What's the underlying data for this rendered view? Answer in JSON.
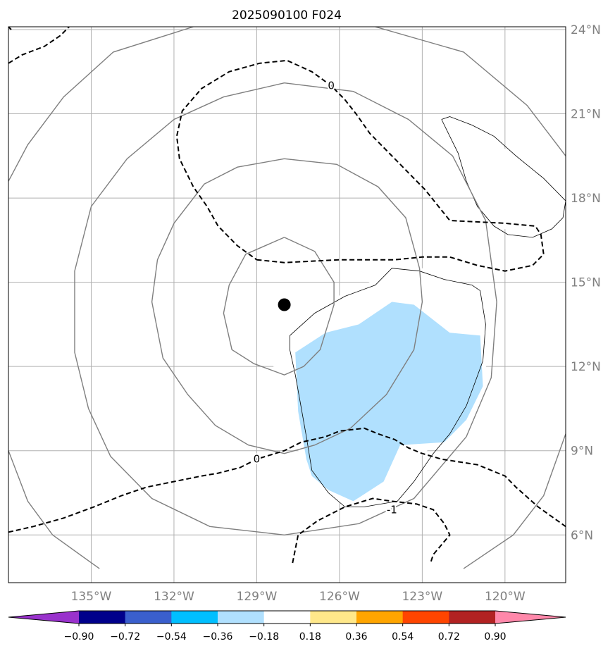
{
  "chart_data": {
    "type": "contour-map",
    "title": "2025090100 F024",
    "lon_range": [
      -138.0,
      -117.8
    ],
    "lat_range": [
      4.3,
      24.1
    ],
    "lon_ticks": [
      "135°W",
      "132°W",
      "129°W",
      "126°W",
      "123°W",
      "120°W"
    ],
    "lon_tick_values": [
      -135,
      -132,
      -129,
      -126,
      -123,
      -120
    ],
    "lat_ticks": [
      "24°N",
      "21°N",
      "18°N",
      "15°N",
      "12°N",
      "9°N",
      "6°N"
    ],
    "lat_tick_values": [
      24,
      21,
      18,
      15,
      12,
      9,
      6
    ],
    "grid": true,
    "storm_center": {
      "lon": -128.0,
      "lat": 14.2
    },
    "filled_levels": [
      -0.9,
      -0.72,
      -0.54,
      -0.36,
      -0.18,
      0.18,
      0.36,
      0.54,
      0.72,
      0.9
    ],
    "colorbar": {
      "labels": [
        "−0.90",
        "−0.72",
        "−0.54",
        "−0.36",
        "−0.18",
        "0.18",
        "0.36",
        "0.54",
        "0.72",
        "0.90"
      ],
      "colors": [
        "#9932cc",
        "#00008b",
        "#3a5fcd",
        "#00bfff",
        "#b0e0fe",
        "#ffffff",
        "#ffe88a",
        "#ffa500",
        "#ff4500",
        "#b22222",
        "#ff88aa"
      ],
      "extend": "both"
    },
    "dashed_contour_labels": [
      {
        "text": "0",
        "lon": -126.3,
        "lat": 22.0
      },
      {
        "text": "0",
        "lon": -129.0,
        "lat": 8.7
      },
      {
        "text": "-1",
        "lon": -124.1,
        "lat": 6.9
      }
    ],
    "fill_regions": [
      {
        "level": "-0.36",
        "points": [
          [
            -127.6,
            12.5
          ],
          [
            -127.5,
            10.4
          ],
          [
            -127.2,
            8.7
          ],
          [
            -127.0,
            8.1
          ],
          [
            -126.4,
            7.6
          ],
          [
            -125.5,
            7.2
          ],
          [
            -124.4,
            7.9
          ],
          [
            -123.8,
            9.2
          ],
          [
            -122.2,
            9.3
          ],
          [
            -121.4,
            10.1
          ],
          [
            -120.8,
            11.3
          ],
          [
            -120.9,
            13.1
          ],
          [
            -122.0,
            13.2
          ],
          [
            -123.3,
            14.2
          ],
          [
            -124.1,
            14.3
          ],
          [
            -125.3,
            13.5
          ],
          [
            -126.5,
            13.2
          ]
        ]
      },
      {
        "level": "-0.18",
        "points": [
          [
            -128.4,
            13.7
          ],
          [
            -127.8,
            14.0
          ],
          [
            -126.9,
            14.3
          ],
          [
            -126.1,
            14.5
          ],
          [
            -125.4,
            14.7
          ],
          [
            -124.3,
            15.4
          ],
          [
            -123.6,
            15.8
          ],
          [
            -123.0,
            15.5
          ],
          [
            -122.0,
            15.1
          ],
          [
            -121.2,
            14.8
          ],
          [
            -120.4,
            14.3
          ],
          [
            -120.5,
            12.3
          ],
          [
            -121.0,
            11.5
          ],
          [
            -121.1,
            10.5
          ],
          [
            -121.6,
            9.6
          ],
          [
            -122.6,
            9.2
          ],
          [
            -123.8,
            8.1
          ],
          [
            -124.5,
            6.9
          ],
          [
            -125.1,
            6.8
          ],
          [
            -125.9,
            7.1
          ],
          [
            -126.7,
            7.5
          ],
          [
            -127.2,
            7.6
          ],
          [
            -127.4,
            8.2
          ],
          [
            -127.6,
            10.0
          ],
          [
            -127.6,
            11.5
          ],
          [
            -128.1,
            11.9
          ],
          [
            -128.4,
            12.0
          ]
        ]
      },
      {
        "level": "-0.18",
        "points": [
          [
            -122.0,
            20.7
          ],
          [
            -121.1,
            20.3
          ],
          [
            -120.5,
            20.1
          ],
          [
            -119.5,
            19.4
          ],
          [
            -118.5,
            18.7
          ],
          [
            -117.8,
            18.2
          ],
          [
            -117.8,
            17.6
          ],
          [
            -118.3,
            17.1
          ],
          [
            -119.0,
            16.8
          ],
          [
            -120.1,
            16.9
          ],
          [
            -120.9,
            17.6
          ],
          [
            -121.5,
            18.8
          ],
          [
            -122.0,
            19.6
          ],
          [
            -122.3,
            20.1
          ],
          [
            -122.3,
            20.8
          ],
          [
            -122.1,
            20.9
          ]
        ]
      },
      {
        "level": "-0.18",
        "points": [
          [
            -138.0,
            5.2
          ],
          [
            -137.7,
            5.0
          ],
          [
            -138.0,
            4.9
          ]
        ]
      }
    ],
    "solid_contours": [
      [
        [
          -128.0,
          16.6
        ],
        [
          -126.9,
          16.1
        ],
        [
          -126.2,
          15.0
        ],
        [
          -126.2,
          14.2
        ],
        [
          -126.7,
          12.6
        ],
        [
          -127.3,
          12.0
        ],
        [
          -128.0,
          11.7
        ],
        [
          -129.1,
          12.1
        ],
        [
          -129.9,
          12.6
        ],
        [
          -130.2,
          13.9
        ],
        [
          -130.0,
          14.9
        ],
        [
          -129.4,
          16.0
        ],
        [
          -128.0,
          16.6
        ]
      ],
      [
        [
          -128.0,
          19.4
        ],
        [
          -126.1,
          19.2
        ],
        [
          -124.6,
          18.4
        ],
        [
          -123.6,
          17.3
        ],
        [
          -123.1,
          15.5
        ],
        [
          -123.0,
          14.3
        ],
        [
          -123.3,
          12.6
        ],
        [
          -124.3,
          11.0
        ],
        [
          -125.6,
          9.8
        ],
        [
          -126.9,
          9.2
        ],
        [
          -128.0,
          8.9
        ],
        [
          -129.3,
          9.2
        ],
        [
          -130.5,
          9.9
        ],
        [
          -131.5,
          11.0
        ],
        [
          -132.4,
          12.3
        ],
        [
          -132.8,
          14.3
        ],
        [
          -132.6,
          15.8
        ],
        [
          -132.0,
          17.1
        ],
        [
          -130.9,
          18.5
        ],
        [
          -129.7,
          19.1
        ],
        [
          -128.0,
          19.4
        ]
      ],
      [
        [
          -128.0,
          22.1
        ],
        [
          -125.5,
          21.8
        ],
        [
          -123.5,
          20.8
        ],
        [
          -121.9,
          19.5
        ],
        [
          -120.7,
          17.2
        ],
        [
          -120.3,
          14.3
        ],
        [
          -120.5,
          11.6
        ],
        [
          -121.4,
          9.5
        ],
        [
          -123.3,
          7.3
        ],
        [
          -125.3,
          6.4
        ],
        [
          -128.0,
          6.0
        ],
        [
          -130.7,
          6.3
        ],
        [
          -132.8,
          7.3
        ],
        [
          -134.3,
          8.8
        ],
        [
          -135.1,
          10.5
        ],
        [
          -135.6,
          12.5
        ],
        [
          -135.6,
          15.4
        ],
        [
          -135.0,
          17.7
        ],
        [
          -133.7,
          19.4
        ],
        [
          -132.0,
          20.8
        ],
        [
          -130.2,
          21.6
        ],
        [
          -128.0,
          22.1
        ]
      ],
      [
        [
          -131.3,
          24.1
        ],
        [
          -134.2,
          23.2
        ],
        [
          -136.0,
          21.6
        ],
        [
          -137.3,
          19.9
        ],
        [
          -138.0,
          18.6
        ]
      ],
      [
        [
          -124.7,
          24.1
        ],
        [
          -121.5,
          23.2
        ],
        [
          -119.2,
          21.3
        ],
        [
          -117.8,
          19.5
        ]
      ],
      [
        [
          -138.0,
          9.0
        ],
        [
          -137.3,
          7.2
        ],
        [
          -136.4,
          6.0
        ],
        [
          -134.7,
          4.8
        ]
      ],
      [
        [
          -117.8,
          9.6
        ],
        [
          -118.6,
          7.4
        ],
        [
          -119.7,
          6.0
        ],
        [
          -121.5,
          4.8
        ]
      ]
    ],
    "thin_contours": [
      [
        [
          -127.8,
          13.1
        ],
        [
          -126.9,
          13.9
        ],
        [
          -125.8,
          14.5
        ],
        [
          -124.7,
          14.9
        ],
        [
          -124.1,
          15.5
        ],
        [
          -123.1,
          15.4
        ],
        [
          -122.2,
          15.1
        ],
        [
          -121.2,
          14.9
        ],
        [
          -120.9,
          14.7
        ],
        [
          -120.7,
          13.5
        ],
        [
          -120.8,
          12.2
        ],
        [
          -121.1,
          11.4
        ],
        [
          -121.4,
          10.6
        ],
        [
          -122.0,
          9.6
        ],
        [
          -122.6,
          8.9
        ],
        [
          -123.3,
          7.9
        ],
        [
          -123.9,
          7.2
        ],
        [
          -124.5,
          7.1
        ],
        [
          -125.1,
          7.0
        ],
        [
          -125.8,
          7.0
        ],
        [
          -126.4,
          7.5
        ],
        [
          -127.0,
          8.3
        ],
        [
          -127.2,
          9.5
        ],
        [
          -127.4,
          10.6
        ],
        [
          -127.6,
          11.7
        ],
        [
          -127.8,
          12.6
        ],
        [
          -127.8,
          13.1
        ]
      ],
      [
        [
          -122.3,
          20.8
        ],
        [
          -122.0,
          20.9
        ],
        [
          -121.2,
          20.6
        ],
        [
          -120.4,
          20.2
        ],
        [
          -119.6,
          19.5
        ],
        [
          -118.6,
          18.7
        ],
        [
          -117.8,
          17.9
        ],
        [
          -117.9,
          17.3
        ],
        [
          -118.3,
          16.9
        ],
        [
          -119.0,
          16.6
        ],
        [
          -119.9,
          16.7
        ],
        [
          -120.4,
          17.0
        ],
        [
          -121.0,
          17.7
        ],
        [
          -121.4,
          18.6
        ],
        [
          -121.7,
          19.6
        ],
        [
          -122.0,
          20.2
        ],
        [
          -122.3,
          20.8
        ]
      ]
    ],
    "dashed_contours": [
      [
        [
          -129.0,
          15.8
        ],
        [
          -128.0,
          15.7
        ],
        [
          -126.0,
          15.8
        ],
        [
          -124.0,
          15.8
        ],
        [
          -123.0,
          15.9
        ],
        [
          -122.0,
          15.9
        ],
        [
          -121.0,
          15.6
        ],
        [
          -120.0,
          15.4
        ],
        [
          -119.0,
          15.6
        ],
        [
          -118.6,
          16.0
        ],
        [
          -118.7,
          16.7
        ],
        [
          -118.9,
          17.0
        ],
        [
          -120.0,
          17.1
        ],
        [
          -122.0,
          17.2
        ],
        [
          -122.9,
          18.3
        ],
        [
          -123.4,
          18.8
        ],
        [
          -124.4,
          19.8
        ],
        [
          -124.9,
          20.3
        ],
        [
          -125.4,
          21.0
        ],
        [
          -125.8,
          21.5
        ],
        [
          -126.3,
          22.0
        ],
        [
          -127.0,
          22.5
        ],
        [
          -127.9,
          22.9
        ],
        [
          -128.9,
          22.8
        ],
        [
          -130.0,
          22.5
        ],
        [
          -131.0,
          21.9
        ],
        [
          -131.7,
          21.1
        ],
        [
          -131.9,
          20.2
        ],
        [
          -131.8,
          19.4
        ],
        [
          -131.3,
          18.4
        ],
        [
          -130.8,
          17.7
        ],
        [
          -130.4,
          17.0
        ],
        [
          -129.7,
          16.3
        ],
        [
          -129.0,
          15.8
        ]
      ],
      [
        [
          -138.0,
          6.1
        ],
        [
          -137.1,
          6.3
        ],
        [
          -136.0,
          6.6
        ],
        [
          -134.9,
          7.0
        ],
        [
          -133.9,
          7.4
        ],
        [
          -133.0,
          7.7
        ],
        [
          -132.0,
          7.9
        ],
        [
          -131.0,
          8.1
        ],
        [
          -130.4,
          8.2
        ],
        [
          -129.6,
          8.4
        ],
        [
          -129.0,
          8.7
        ],
        [
          -128.0,
          9.0
        ],
        [
          -127.4,
          9.3
        ],
        [
          -126.5,
          9.5
        ],
        [
          -126.0,
          9.7
        ],
        [
          -125.1,
          9.8
        ],
        [
          -124.6,
          9.6
        ],
        [
          -124.0,
          9.4
        ],
        [
          -123.5,
          9.1
        ],
        [
          -123.0,
          8.9
        ],
        [
          -122.3,
          8.7
        ],
        [
          -121.0,
          8.5
        ],
        [
          -120.0,
          8.1
        ],
        [
          -119.6,
          7.7
        ],
        [
          -118.8,
          7.0
        ],
        [
          -117.8,
          6.3
        ]
      ],
      [
        [
          -127.7,
          5.0
        ],
        [
          -127.5,
          6.0
        ],
        [
          -126.8,
          6.5
        ],
        [
          -125.8,
          7.0
        ],
        [
          -124.8,
          7.3
        ],
        [
          -124.1,
          7.2
        ],
        [
          -123.2,
          7.1
        ],
        [
          -122.6,
          6.9
        ],
        [
          -122.2,
          6.4
        ],
        [
          -122.0,
          6.0
        ],
        [
          -122.6,
          5.3
        ],
        [
          -122.7,
          5.0
        ]
      ],
      [
        [
          -138.0,
          22.8
        ],
        [
          -137.5,
          23.1
        ],
        [
          -136.7,
          23.4
        ],
        [
          -136.1,
          23.8
        ],
        [
          -135.8,
          24.1
        ]
      ],
      [
        [
          -138.0,
          24.1
        ],
        [
          -137.9,
          24.0
        ]
      ]
    ]
  }
}
